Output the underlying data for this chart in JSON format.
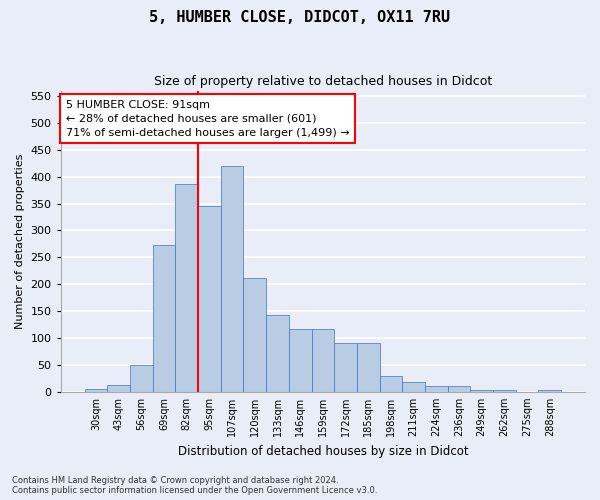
{
  "title": "5, HUMBER CLOSE, DIDCOT, OX11 7RU",
  "subtitle": "Size of property relative to detached houses in Didcot",
  "xlabel": "Distribution of detached houses by size in Didcot",
  "ylabel": "Number of detached properties",
  "footnote1": "Contains HM Land Registry data © Crown copyright and database right 2024.",
  "footnote2": "Contains public sector information licensed under the Open Government Licence v3.0.",
  "categories": [
    "30sqm",
    "43sqm",
    "56sqm",
    "69sqm",
    "82sqm",
    "95sqm",
    "107sqm",
    "120sqm",
    "133sqm",
    "146sqm",
    "159sqm",
    "172sqm",
    "185sqm",
    "198sqm",
    "211sqm",
    "224sqm",
    "236sqm",
    "249sqm",
    "262sqm",
    "275sqm",
    "288sqm"
  ],
  "values": [
    5,
    12,
    50,
    273,
    387,
    345,
    419,
    211,
    143,
    116,
    116,
    90,
    90,
    30,
    18,
    10,
    10,
    3,
    3,
    0,
    3
  ],
  "bar_color": "#b8cce4",
  "bar_edge_color": "#4472c4",
  "background_color": "#e8edf8",
  "grid_color": "#ffffff",
  "vline_x": 4.5,
  "vline_color": "red",
  "annotation_text": "5 HUMBER CLOSE: 91sqm\n← 28% of detached houses are smaller (601)\n71% of semi-detached houses are larger (1,499) →",
  "annotation_box_color": "white",
  "annotation_box_edge": "red",
  "ylim": [
    0,
    560
  ],
  "yticks": [
    0,
    50,
    100,
    150,
    200,
    250,
    300,
    350,
    400,
    450,
    500,
    550
  ]
}
